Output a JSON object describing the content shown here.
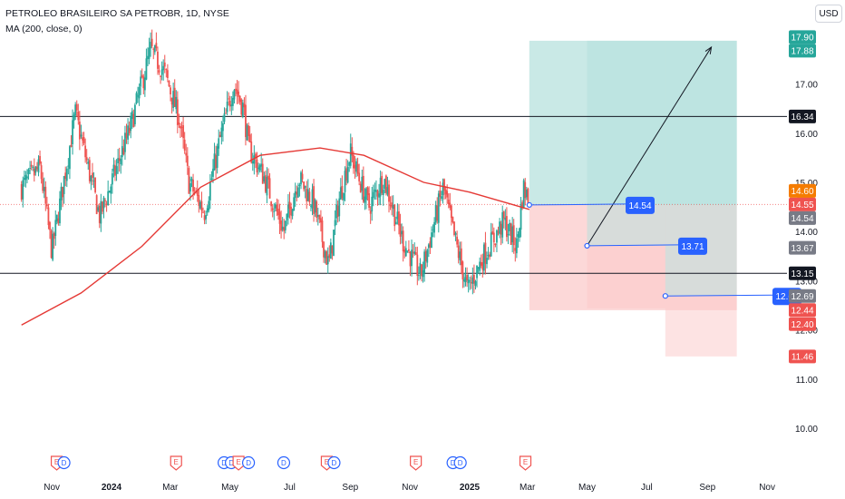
{
  "header": {
    "title": "PETROLEO BRASILEIRO SA PETROBR, 1D, NYSE",
    "indicator": "MA (200, close, 0)",
    "currency_button": "USD"
  },
  "colors": {
    "up": "#26a69a",
    "down": "#ef5350",
    "ma": "#e53935",
    "target_zone": "#b2dfdb",
    "stop_zone": "#fbc8c8",
    "label_blue": "#2962ff",
    "pre_badge": "#f57c00"
  },
  "chart_data": {
    "type": "candlestick",
    "title": "PETROLEO BRASILEIRO SA PETROBR, 1D, NYSE",
    "ylim": [
      9.6,
      18.1
    ],
    "y_ticks": [
      10.0,
      11.0,
      12.0,
      13.0,
      14.0,
      15.0,
      16.0,
      17.0
    ],
    "x_ticks": [
      "Nov",
      "2024",
      "Mar",
      "May",
      "Jul",
      "Sep",
      "Nov",
      "2025",
      "Mar",
      "May",
      "Jul",
      "Sep",
      "Nov"
    ],
    "price_path": [
      {
        "date": "2023-10-01",
        "price": 14.9
      },
      {
        "date": "2023-10-20",
        "price": 15.3
      },
      {
        "date": "2023-11-01",
        "price": 13.6
      },
      {
        "date": "2023-11-25",
        "price": 16.4
      },
      {
        "date": "2023-12-20",
        "price": 14.3
      },
      {
        "date": "2024-01-20",
        "price": 16.1
      },
      {
        "date": "2024-02-10",
        "price": 17.7
      },
      {
        "date": "2024-02-25",
        "price": 17.2
      },
      {
        "date": "2024-03-10",
        "price": 16.3
      },
      {
        "date": "2024-03-20",
        "price": 15.0
      },
      {
        "date": "2024-04-05",
        "price": 14.4
      },
      {
        "date": "2024-04-20",
        "price": 15.8
      },
      {
        "date": "2024-05-05",
        "price": 17.0
      },
      {
        "date": "2024-05-15",
        "price": 16.5
      },
      {
        "date": "2024-05-20",
        "price": 15.7
      },
      {
        "date": "2024-06-05",
        "price": 15.1
      },
      {
        "date": "2024-06-25",
        "price": 14.0
      },
      {
        "date": "2024-07-10",
        "price": 15.1
      },
      {
        "date": "2024-07-25",
        "price": 14.6
      },
      {
        "date": "2024-08-10",
        "price": 13.3
      },
      {
        "date": "2024-08-20",
        "price": 14.6
      },
      {
        "date": "2024-09-01",
        "price": 15.6
      },
      {
        "date": "2024-09-20",
        "price": 14.5
      },
      {
        "date": "2024-10-05",
        "price": 15.1
      },
      {
        "date": "2024-10-25",
        "price": 13.8
      },
      {
        "date": "2024-11-12",
        "price": 13.1
      },
      {
        "date": "2024-12-05",
        "price": 14.9
      },
      {
        "date": "2024-12-15",
        "price": 14.0
      },
      {
        "date": "2024-12-30",
        "price": 12.8
      },
      {
        "date": "2025-01-15",
        "price": 13.5
      },
      {
        "date": "2025-02-05",
        "price": 14.2
      },
      {
        "date": "2025-02-18",
        "price": 13.7
      },
      {
        "date": "2025-02-25",
        "price": 14.9
      },
      {
        "date": "2025-03-03",
        "price": 14.6
      }
    ],
    "ma200": [
      {
        "date": "2023-10-01",
        "value": 12.1
      },
      {
        "date": "2023-12-01",
        "value": 12.75
      },
      {
        "date": "2024-02-01",
        "value": 13.7
      },
      {
        "date": "2024-04-01",
        "value": 14.9
      },
      {
        "date": "2024-06-01",
        "value": 15.55
      },
      {
        "date": "2024-08-01",
        "value": 15.7
      },
      {
        "date": "2024-09-15",
        "value": 15.55
      },
      {
        "date": "2024-11-15",
        "value": 15.0
      },
      {
        "date": "2025-01-01",
        "value": 14.8
      },
      {
        "date": "2025-03-03",
        "value": 14.45
      }
    ],
    "horizontal_lines": [
      16.34,
      13.15
    ],
    "positions": [
      {
        "start": "2025-03-03",
        "end": "2025-10-01",
        "entry": 14.54,
        "target": 17.88,
        "stop": 12.4
      },
      {
        "start": "2025-05-01",
        "end": "2025-07-20",
        "entry": 13.71,
        "target": 17.88,
        "stop": 12.44
      },
      {
        "start": "2025-07-20",
        "end": "2025-10-01",
        "entry": 12.69,
        "target": 17.88,
        "stop": 11.46
      }
    ],
    "trend_arrow": {
      "from": {
        "date": "2025-05-01",
        "price": 13.71
      },
      "to": {
        "date": "2025-09-05",
        "price": 17.75
      }
    },
    "entry_labels": [
      {
        "text": "14.54",
        "date": "2025-03-03",
        "price": 14.54
      },
      {
        "text": "13.71",
        "date": "2025-05-01",
        "price": 13.71
      },
      {
        "text": "12.69",
        "date": "2025-07-20",
        "price": 12.69
      }
    ],
    "price_axis_labels": [
      {
        "text": "17.90",
        "price": 17.9,
        "bg": "#26a69a",
        "fg": "#ffffff"
      },
      {
        "text": "17.88",
        "price": 17.88,
        "bg": "#26a69a",
        "fg": "#ffffff"
      },
      {
        "text": "16.34",
        "price": 16.34,
        "bg": "#131722",
        "fg": "#ffffff"
      },
      {
        "text": "Pre",
        "price": 14.6,
        "bg": "#f57c00",
        "fg": "#ffffff"
      },
      {
        "text": "14.60",
        "price": 14.6,
        "bg": "#f57c00",
        "fg": "#ffffff"
      },
      {
        "text": "14.55",
        "price": 14.55,
        "bg": "#ef5350",
        "fg": "#ffffff"
      },
      {
        "text": "14.54",
        "price": 14.54,
        "bg": "#787b86",
        "fg": "#ffffff"
      },
      {
        "text": "13.67",
        "price": 13.67,
        "bg": "#787b86",
        "fg": "#ffffff"
      },
      {
        "text": "13.15",
        "price": 13.15,
        "bg": "#131722",
        "fg": "#ffffff"
      },
      {
        "text": "12.69",
        "price": 12.69,
        "bg": "#787b86",
        "fg": "#ffffff"
      },
      {
        "text": "12.44",
        "price": 12.44,
        "bg": "#ef5350",
        "fg": "#ffffff"
      },
      {
        "text": "12.40",
        "price": 12.4,
        "bg": "#ef5350",
        "fg": "#ffffff"
      },
      {
        "text": "11.46",
        "price": 11.46,
        "bg": "#ef5350",
        "fg": "#ffffff"
      }
    ],
    "event_markers": [
      {
        "date": "2023-11-06",
        "kinds": [
          "E",
          "D"
        ]
      },
      {
        "date": "2024-03-07",
        "kinds": [
          "E"
        ]
      },
      {
        "date": "2024-04-25",
        "kinds": [
          "D",
          "D",
          "E"
        ]
      },
      {
        "date": "2024-05-20",
        "kinds": [
          "D"
        ]
      },
      {
        "date": "2024-06-25",
        "kinds": [
          "D"
        ]
      },
      {
        "date": "2024-08-08",
        "kinds": [
          "E",
          "D"
        ]
      },
      {
        "date": "2024-11-07",
        "kinds": [
          "E"
        ]
      },
      {
        "date": "2024-12-15",
        "kinds": [
          "D",
          "D"
        ]
      },
      {
        "date": "2025-02-27",
        "kinds": [
          "E"
        ]
      }
    ]
  }
}
